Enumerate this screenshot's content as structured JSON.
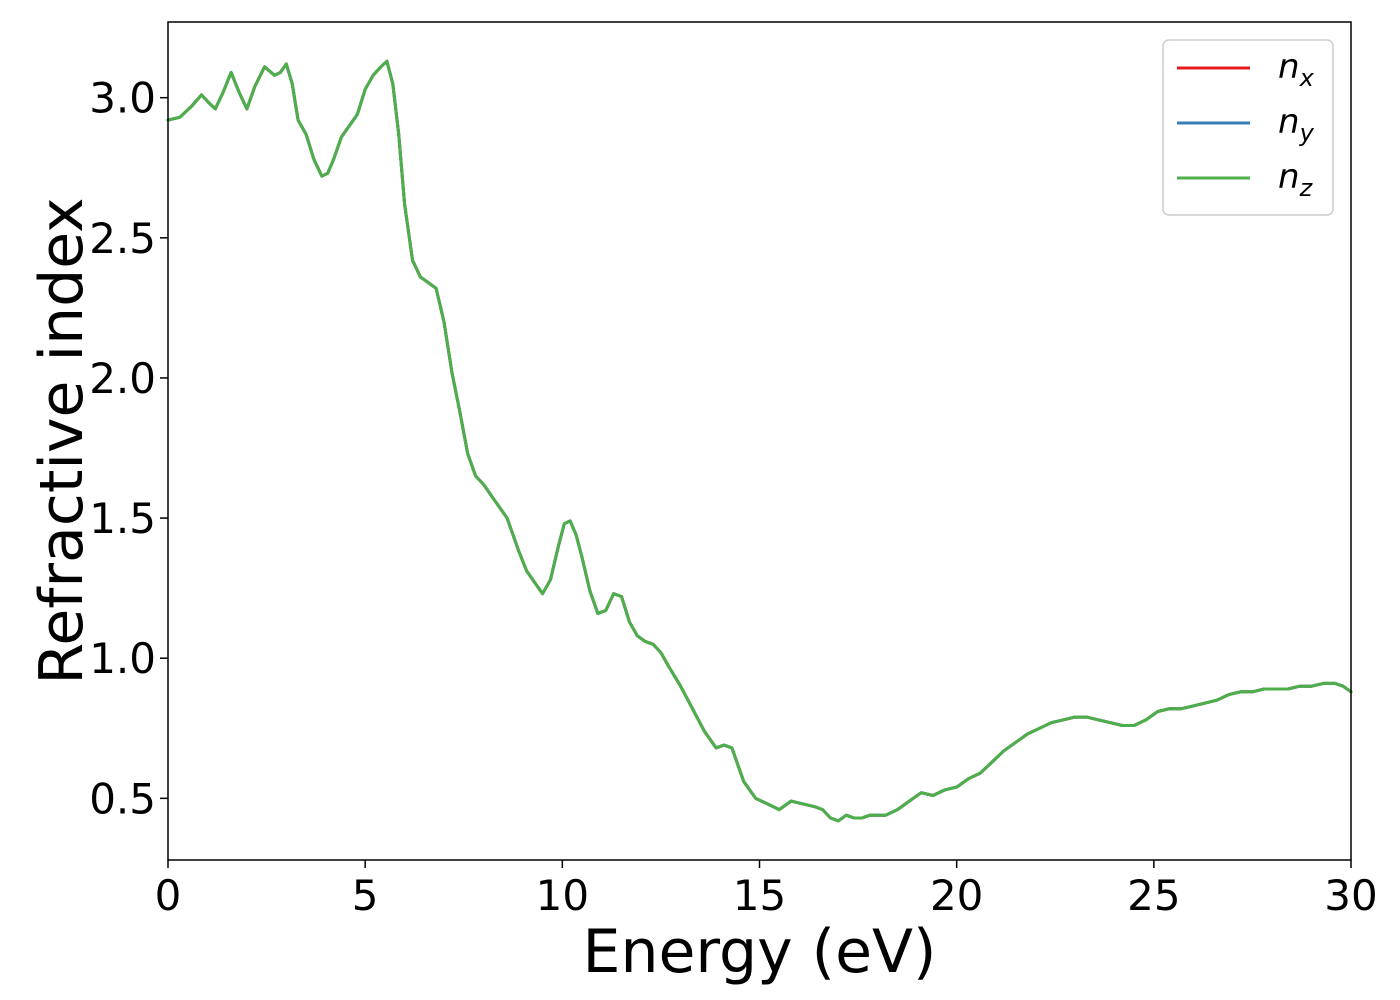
{
  "chart_data": {
    "type": "line",
    "xlabel": "Energy (eV)",
    "ylabel": "Refractive index",
    "xlim": [
      0,
      30
    ],
    "ylim": [
      0.28,
      3.27
    ],
    "grid": false,
    "legend_position": "top-right",
    "x_ticks": [
      "0",
      "5",
      "10",
      "15",
      "20",
      "25",
      "30"
    ],
    "y_ticks": [
      "0.5",
      "1.0",
      "1.5",
      "2.0",
      "2.5",
      "3.0"
    ],
    "x": [
      0.0,
      0.3,
      0.6,
      0.85,
      1.05,
      1.2,
      1.4,
      1.6,
      1.8,
      2.0,
      2.2,
      2.45,
      2.7,
      2.85,
      3.0,
      3.15,
      3.3,
      3.5,
      3.7,
      3.9,
      4.05,
      4.2,
      4.4,
      4.6,
      4.8,
      5.0,
      5.2,
      5.4,
      5.55,
      5.7,
      5.85,
      6.0,
      6.2,
      6.4,
      6.6,
      6.8,
      7.0,
      7.2,
      7.4,
      7.6,
      7.8,
      8.0,
      8.3,
      8.6,
      8.9,
      9.1,
      9.3,
      9.5,
      9.7,
      9.9,
      10.05,
      10.2,
      10.35,
      10.5,
      10.7,
      10.9,
      11.1,
      11.3,
      11.5,
      11.7,
      11.9,
      12.1,
      12.3,
      12.5,
      12.7,
      13.0,
      13.3,
      13.6,
      13.9,
      14.1,
      14.3,
      14.6,
      14.9,
      15.2,
      15.5,
      15.8,
      16.1,
      16.4,
      16.6,
      16.8,
      17.0,
      17.2,
      17.4,
      17.6,
      17.8,
      18.0,
      18.2,
      18.5,
      18.8,
      19.1,
      19.4,
      19.7,
      20.0,
      20.3,
      20.6,
      20.9,
      21.2,
      21.5,
      21.8,
      22.1,
      22.4,
      22.7,
      23.0,
      23.3,
      23.6,
      23.9,
      24.2,
      24.5,
      24.8,
      25.1,
      25.4,
      25.7,
      26.0,
      26.3,
      26.6,
      26.9,
      27.2,
      27.5,
      27.8,
      28.1,
      28.4,
      28.7,
      29.0,
      29.3,
      29.6,
      29.8,
      30.0
    ],
    "series": [
      {
        "name": "n_x",
        "color": "#e41a1c",
        "values": [
          2.92,
          2.93,
          2.97,
          3.01,
          2.98,
          2.96,
          3.02,
          3.09,
          3.02,
          2.96,
          3.04,
          3.11,
          3.08,
          3.09,
          3.12,
          3.05,
          2.92,
          2.87,
          2.78,
          2.72,
          2.73,
          2.78,
          2.86,
          2.9,
          2.94,
          3.03,
          3.08,
          3.11,
          3.13,
          3.05,
          2.87,
          2.62,
          2.42,
          2.36,
          2.34,
          2.32,
          2.2,
          2.02,
          1.88,
          1.73,
          1.65,
          1.62,
          1.56,
          1.5,
          1.38,
          1.31,
          1.27,
          1.23,
          1.28,
          1.4,
          1.48,
          1.49,
          1.44,
          1.36,
          1.24,
          1.16,
          1.17,
          1.23,
          1.22,
          1.13,
          1.08,
          1.06,
          1.05,
          1.02,
          0.97,
          0.9,
          0.82,
          0.74,
          0.68,
          0.69,
          0.68,
          0.56,
          0.5,
          0.48,
          0.46,
          0.49,
          0.48,
          0.47,
          0.46,
          0.43,
          0.42,
          0.44,
          0.43,
          0.43,
          0.44,
          0.44,
          0.44,
          0.46,
          0.49,
          0.52,
          0.51,
          0.53,
          0.54,
          0.57,
          0.59,
          0.63,
          0.67,
          0.7,
          0.73,
          0.75,
          0.77,
          0.78,
          0.79,
          0.79,
          0.78,
          0.77,
          0.76,
          0.76,
          0.78,
          0.81,
          0.82,
          0.82,
          0.83,
          0.84,
          0.85,
          0.87,
          0.88,
          0.88,
          0.89,
          0.89,
          0.89,
          0.9,
          0.9,
          0.91,
          0.91,
          0.9,
          0.88
        ]
      },
      {
        "name": "n_y",
        "color": "#377eb8",
        "values": [
          2.92,
          2.93,
          2.97,
          3.01,
          2.98,
          2.96,
          3.02,
          3.09,
          3.02,
          2.96,
          3.04,
          3.11,
          3.08,
          3.09,
          3.12,
          3.05,
          2.92,
          2.87,
          2.78,
          2.72,
          2.73,
          2.78,
          2.86,
          2.9,
          2.94,
          3.03,
          3.08,
          3.11,
          3.13,
          3.05,
          2.87,
          2.62,
          2.42,
          2.36,
          2.34,
          2.32,
          2.2,
          2.02,
          1.88,
          1.73,
          1.65,
          1.62,
          1.56,
          1.5,
          1.38,
          1.31,
          1.27,
          1.23,
          1.28,
          1.4,
          1.48,
          1.49,
          1.44,
          1.36,
          1.24,
          1.16,
          1.17,
          1.23,
          1.22,
          1.13,
          1.08,
          1.06,
          1.05,
          1.02,
          0.97,
          0.9,
          0.82,
          0.74,
          0.68,
          0.69,
          0.68,
          0.56,
          0.5,
          0.48,
          0.46,
          0.49,
          0.48,
          0.47,
          0.46,
          0.43,
          0.42,
          0.44,
          0.43,
          0.43,
          0.44,
          0.44,
          0.44,
          0.46,
          0.49,
          0.52,
          0.51,
          0.53,
          0.54,
          0.57,
          0.59,
          0.63,
          0.67,
          0.7,
          0.73,
          0.75,
          0.77,
          0.78,
          0.79,
          0.79,
          0.78,
          0.77,
          0.76,
          0.76,
          0.78,
          0.81,
          0.82,
          0.82,
          0.83,
          0.84,
          0.85,
          0.87,
          0.88,
          0.88,
          0.89,
          0.89,
          0.89,
          0.9,
          0.9,
          0.91,
          0.91,
          0.9,
          0.88
        ]
      },
      {
        "name": "n_z",
        "color": "#4daf4a",
        "values": [
          2.92,
          2.93,
          2.97,
          3.01,
          2.98,
          2.96,
          3.02,
          3.09,
          3.02,
          2.96,
          3.04,
          3.11,
          3.08,
          3.09,
          3.12,
          3.05,
          2.92,
          2.87,
          2.78,
          2.72,
          2.73,
          2.78,
          2.86,
          2.9,
          2.94,
          3.03,
          3.08,
          3.11,
          3.13,
          3.05,
          2.87,
          2.62,
          2.42,
          2.36,
          2.34,
          2.32,
          2.2,
          2.02,
          1.88,
          1.73,
          1.65,
          1.62,
          1.56,
          1.5,
          1.38,
          1.31,
          1.27,
          1.23,
          1.28,
          1.4,
          1.48,
          1.49,
          1.44,
          1.36,
          1.24,
          1.16,
          1.17,
          1.23,
          1.22,
          1.13,
          1.08,
          1.06,
          1.05,
          1.02,
          0.97,
          0.9,
          0.82,
          0.74,
          0.68,
          0.69,
          0.68,
          0.56,
          0.5,
          0.48,
          0.46,
          0.49,
          0.48,
          0.47,
          0.46,
          0.43,
          0.42,
          0.44,
          0.43,
          0.43,
          0.44,
          0.44,
          0.44,
          0.46,
          0.49,
          0.52,
          0.51,
          0.53,
          0.54,
          0.57,
          0.59,
          0.63,
          0.67,
          0.7,
          0.73,
          0.75,
          0.77,
          0.78,
          0.79,
          0.79,
          0.78,
          0.77,
          0.76,
          0.76,
          0.78,
          0.81,
          0.82,
          0.82,
          0.83,
          0.84,
          0.85,
          0.87,
          0.88,
          0.88,
          0.89,
          0.89,
          0.89,
          0.9,
          0.9,
          0.91,
          0.91,
          0.9,
          0.88
        ]
      }
    ],
    "legend": [
      {
        "base": "n",
        "sub": "x",
        "color": "#e41a1c"
      },
      {
        "base": "n",
        "sub": "y",
        "color": "#377eb8"
      },
      {
        "base": "n",
        "sub": "z",
        "color": "#4daf4a"
      }
    ]
  }
}
